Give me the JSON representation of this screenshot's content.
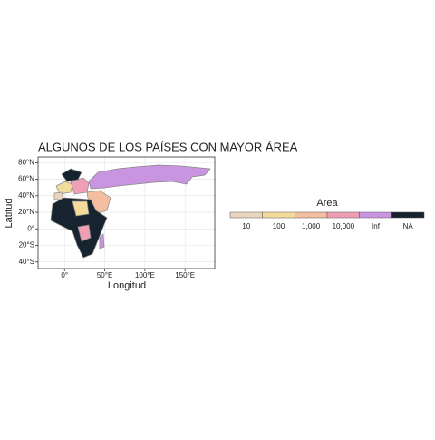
{
  "chart_data": {
    "type": "map",
    "title": "ALGUNOS DE LOS PAÍSES CON MAYOR ÁREA",
    "x_label": "Longitud",
    "y_label": "Latitud",
    "xlim": [
      -33,
      187
    ],
    "ylim": [
      -48,
      87
    ],
    "xticks": [
      {
        "value": 0,
        "label": "0°"
      },
      {
        "value": 50,
        "label": "50°E"
      },
      {
        "value": 100,
        "label": "100°E"
      },
      {
        "value": 150,
        "label": "150°E"
      }
    ],
    "yticks": [
      {
        "value": 80,
        "label": "80°N"
      },
      {
        "value": 60,
        "label": "60°N"
      },
      {
        "value": 40,
        "label": "40°N"
      },
      {
        "value": 20,
        "label": "20°N"
      },
      {
        "value": 0,
        "label": "0°"
      },
      {
        "value": -20,
        "label": "20°S"
      },
      {
        "value": -40,
        "label": "40°S"
      }
    ],
    "grid": true,
    "legend": {
      "title": "Area",
      "labels": [
        "10",
        "100",
        "1,000",
        "10,000",
        "Inf",
        "NA"
      ],
      "colors": [
        "#e9d6bf",
        "#f3dc9b",
        "#f4bfa0",
        "#ef9fb4",
        "#c995e0",
        "#17232f"
      ]
    }
  }
}
